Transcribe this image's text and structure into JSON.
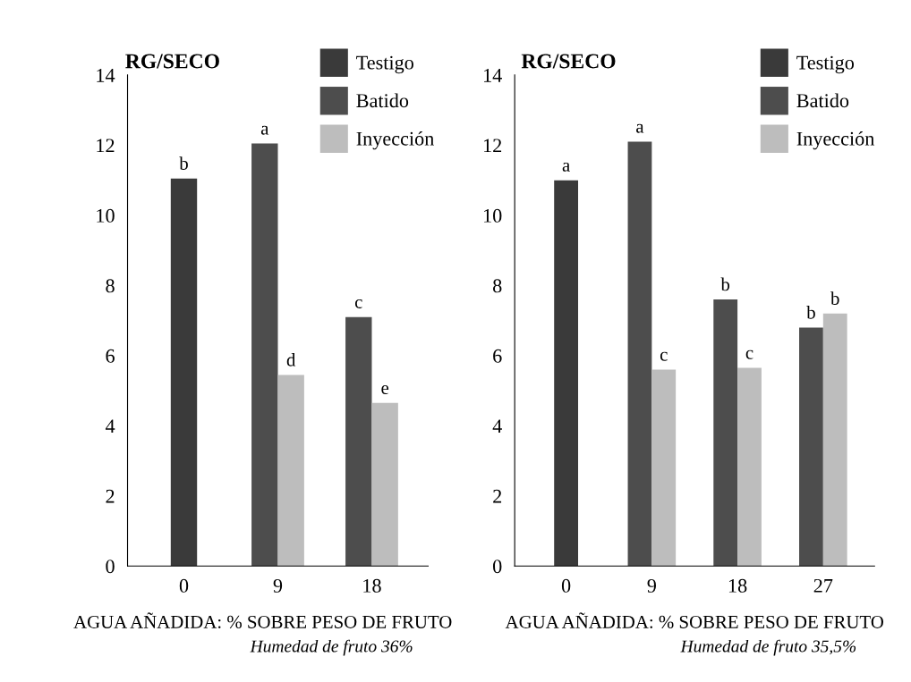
{
  "chart_data": [
    {
      "type": "bar",
      "ylabel": "RG/SECO",
      "xlabel": "AGUA AÑADIDA: % SOBRE PESO DE FRUTO",
      "categories": [
        "0",
        "9",
        "18"
      ],
      "series": [
        {
          "name": "Testigo",
          "color": "#3a3a3a",
          "values": [
            11.05,
            null,
            null
          ],
          "value_labels": [
            "b",
            null,
            null
          ]
        },
        {
          "name": "Batido",
          "color": "#4d4d4d",
          "values": [
            null,
            12.05,
            7.1
          ],
          "value_labels": [
            null,
            "a",
            "c"
          ]
        },
        {
          "name": "Inyección",
          "color": "#bdbdbd",
          "values": [
            null,
            5.45,
            4.65
          ],
          "value_labels": [
            null,
            "d",
            "e"
          ]
        }
      ],
      "ylim": [
        0,
        14
      ],
      "yticks": [
        0,
        2,
        4,
        6,
        8,
        10,
        12,
        14
      ],
      "grid": false,
      "legend": "top right",
      "annotations": [
        "Humedad de fruto 36%"
      ]
    },
    {
      "type": "bar",
      "ylabel": "RG/SECO",
      "xlabel": "AGUA AÑADIDA: % SOBRE PESO DE FRUTO",
      "categories": [
        "0",
        "9",
        "18",
        "27"
      ],
      "series": [
        {
          "name": "Testigo",
          "color": "#3a3a3a",
          "values": [
            11.0,
            null,
            null,
            null
          ],
          "value_labels": [
            "a",
            null,
            null,
            null
          ]
        },
        {
          "name": "Batido",
          "color": "#4d4d4d",
          "values": [
            null,
            12.1,
            7.6,
            6.8
          ],
          "value_labels": [
            null,
            "a",
            "b",
            "b"
          ]
        },
        {
          "name": "Inyección",
          "color": "#bdbdbd",
          "values": [
            null,
            5.6,
            5.65,
            7.2
          ],
          "value_labels": [
            null,
            "c",
            "c",
            "b"
          ]
        }
      ],
      "ylim": [
        0,
        14
      ],
      "yticks": [
        0,
        2,
        4,
        6,
        8,
        10,
        12,
        14
      ],
      "grid": false,
      "legend": "top right",
      "annotations": [
        "Humedad de fruto 35,5%"
      ]
    }
  ]
}
